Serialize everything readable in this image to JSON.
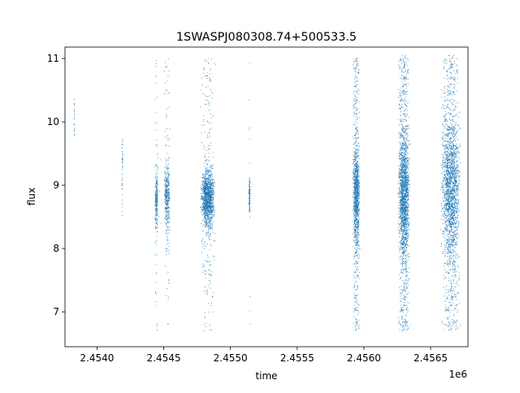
{
  "chart_data": {
    "type": "scatter",
    "title": "1SWASPJ080308.74+500533.5",
    "xlabel": "time",
    "ylabel": "flux",
    "x_offset_label": "1e6",
    "x_scale": 1000000,
    "xlim": [
      2.45376,
      2.45678
    ],
    "ylim": [
      6.45,
      11.18
    ],
    "xticks": [
      2.454,
      2.4545,
      2.455,
      2.4555,
      2.456,
      2.4565
    ],
    "xtick_labels": [
      "2.4540",
      "2.4545",
      "2.4550",
      "2.4555",
      "2.4560",
      "2.4565"
    ],
    "yticks": [
      7,
      8,
      9,
      10,
      11
    ],
    "ytick_labels": [
      "7",
      "8",
      "9",
      "10",
      "11"
    ],
    "grid": false,
    "marker_color": "#1f77b4",
    "series": [
      {
        "x": [
          2453830,
          2453832,
          2454185,
          2454186,
          2454190,
          2454438,
          2454442,
          2454446,
          2454451,
          2454455,
          2454459,
          2454465,
          2454470,
          2454478,
          2454480,
          2454510,
          2454515,
          2454520,
          2454525,
          2454530,
          2454535,
          2454540,
          2454545,
          2454800,
          2454810,
          2454820,
          2454830,
          2454840,
          2454850,
          2454860,
          2454870,
          2454880,
          2454890,
          2455140,
          2455142,
          2455145,
          2455920,
          2455925,
          2455930,
          2455935,
          2455940,
          2455945,
          2455950,
          2455955,
          2455960,
          2455965,
          2456260,
          2456270,
          2456280,
          2456290,
          2456300,
          2456310,
          2456320,
          2456330,
          2456340,
          2456620,
          2456630,
          2456640,
          2456650,
          2456660,
          2456670,
          2456680,
          2456690,
          2456700,
          2456710,
          2456720
        ],
        "y": [
          10.2,
          9.9,
          9.6,
          9.0,
          8.7,
          8.8,
          9.3,
          7.1,
          8.6,
          8.9,
          9.5,
          8.5,
          8.9,
          9.4,
          8.4,
          9.2,
          10.5,
          8.0,
          8.7,
          9.4,
          7.5,
          10.8,
          8.3,
          8.9,
          9.6,
          8.2,
          10.4,
          7.6,
          8.7,
          9.3,
          7.0,
          8.6,
          10.9,
          9.1,
          8.8,
          8.5,
          10.9,
          7.0,
          9.5,
          8.1,
          10.2,
          8.8,
          7.4,
          9.8,
          8.4,
          10.5,
          10.9,
          7.0,
          9.6,
          8.0,
          10.5,
          8.6,
          7.5,
          9.9,
          8.3,
          10.8,
          6.9,
          9.4,
          7.5,
          10.3,
          8.1,
          9.9,
          8.6,
          10.9,
          7.3,
          9.2
        ]
      }
    ],
    "clusters": [
      {
        "x": 2453830,
        "half_width": 4,
        "center": 10.1,
        "spread": 0.2,
        "tail": 0.0,
        "count": 18
      },
      {
        "x": 2454190,
        "half_width": 6,
        "center": 9.2,
        "spread": 0.3,
        "tail": 0.05,
        "count": 40
      },
      {
        "x": 2454445,
        "half_width": 14,
        "center": 8.8,
        "spread": 0.22,
        "tail": 0.14,
        "count": 260
      },
      {
        "x": 2454525,
        "half_width": 22,
        "center": 8.8,
        "spread": 0.25,
        "tail": 0.16,
        "count": 420
      },
      {
        "x": 2454830,
        "half_width": 55,
        "center": 8.78,
        "spread": 0.22,
        "tail": 0.15,
        "count": 1500
      },
      {
        "x": 2455143,
        "half_width": 6,
        "center": 8.8,
        "spread": 0.15,
        "tail": 0.1,
        "count": 120
      },
      {
        "x": 2455943,
        "half_width": 28,
        "center": 8.85,
        "spread": 0.35,
        "tail": 0.28,
        "count": 1300
      },
      {
        "x": 2456300,
        "half_width": 45,
        "center": 8.85,
        "spread": 0.42,
        "tail": 0.32,
        "count": 2200
      },
      {
        "x": 2456650,
        "half_width": 75,
        "center": 8.95,
        "spread": 0.5,
        "tail": 0.3,
        "count": 2400
      }
    ]
  }
}
